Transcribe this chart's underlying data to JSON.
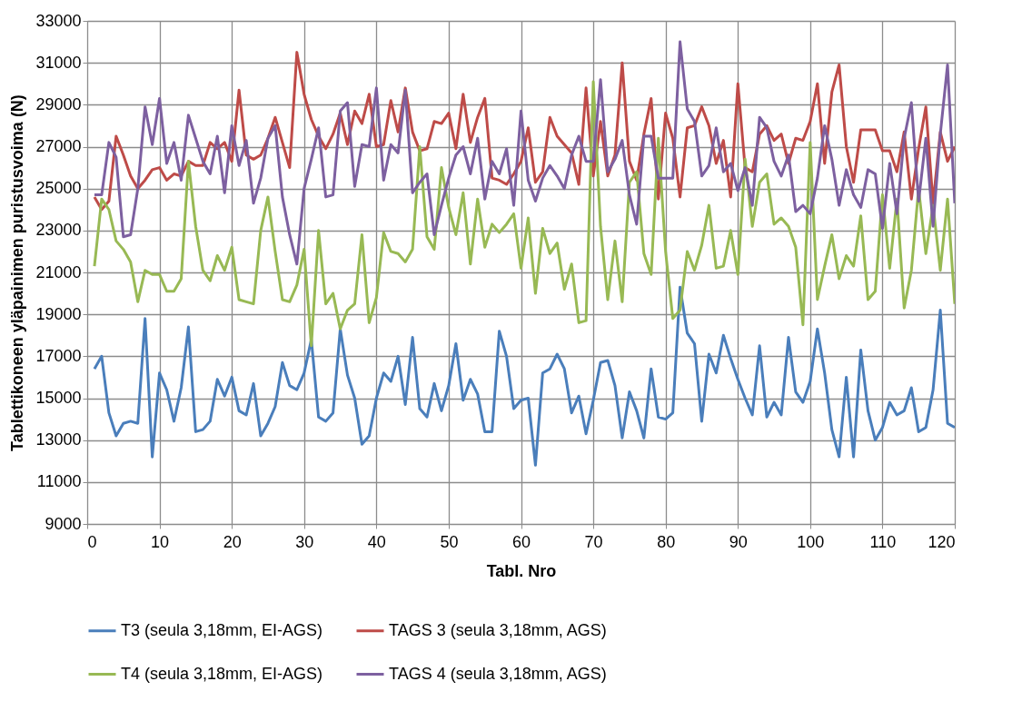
{
  "chart_data": {
    "type": "line",
    "xlabel": "Tabl. Nro",
    "ylabel": "Tablettikoneen yläpainimen puristusvoima (N)",
    "x": [
      1,
      2,
      3,
      4,
      5,
      6,
      7,
      8,
      9,
      10,
      11,
      12,
      13,
      14,
      15,
      16,
      17,
      18,
      19,
      20,
      21,
      22,
      23,
      24,
      25,
      26,
      27,
      28,
      29,
      30,
      31,
      32,
      33,
      34,
      35,
      36,
      37,
      38,
      39,
      40,
      41,
      42,
      43,
      44,
      45,
      46,
      47,
      48,
      49,
      50,
      51,
      52,
      53,
      54,
      55,
      56,
      57,
      58,
      59,
      60,
      61,
      62,
      63,
      64,
      65,
      66,
      67,
      68,
      69,
      70,
      71,
      72,
      73,
      74,
      75,
      76,
      77,
      78,
      79,
      80,
      81,
      82,
      83,
      84,
      85,
      86,
      87,
      88,
      89,
      90,
      91,
      92,
      93,
      94,
      95,
      96,
      97,
      98,
      99,
      100,
      101,
      102,
      103,
      104,
      105,
      106,
      107,
      108,
      109,
      110,
      111,
      112,
      113,
      114,
      115,
      116,
      117,
      118,
      119,
      120
    ],
    "series": [
      {
        "name": "T3 (seula 3,18mm, EI-AGS)",
        "color": "#4a7ebb",
        "values": [
          16400,
          17000,
          14300,
          13200,
          13800,
          13900,
          13800,
          18800,
          12200,
          16200,
          15400,
          13900,
          15500,
          18400,
          13400,
          13500,
          13900,
          15900,
          15100,
          16000,
          14400,
          14200,
          15700,
          13200,
          13800,
          14600,
          16700,
          15600,
          15400,
          16200,
          17800,
          14100,
          13900,
          14300,
          18300,
          16100,
          15000,
          12800,
          13200,
          15000,
          16200,
          15800,
          17000,
          14700,
          17900,
          14500,
          14100,
          15700,
          14400,
          15600,
          17600,
          14900,
          15900,
          15200,
          13400,
          13400,
          18200,
          17000,
          14500,
          14900,
          15000,
          11800,
          16200,
          16400,
          17100,
          16400,
          14300,
          15100,
          13300,
          14900,
          16700,
          16800,
          15600,
          13100,
          15300,
          14400,
          13100,
          16400,
          14100,
          14000,
          14300,
          20300,
          18100,
          17600,
          13900,
          17100,
          16200,
          18000,
          16900,
          15900,
          15000,
          14200,
          17500,
          14100,
          14800,
          14200,
          17900,
          15300,
          14800,
          15800,
          18300,
          16200,
          13500,
          12200,
          16000,
          12200,
          17300,
          14400,
          13000,
          13600,
          14800,
          14200,
          14400,
          15500,
          13400,
          13600,
          15400,
          19200,
          13800,
          13600
        ]
      },
      {
        "name": "TAGS 3 (seula 3,18mm, AGS)",
        "color": "#be4b48",
        "values": [
          24600,
          24000,
          24400,
          27500,
          26600,
          25600,
          25000,
          25400,
          25900,
          26000,
          25400,
          25700,
          25600,
          26300,
          26100,
          26100,
          27200,
          26900,
          27200,
          26300,
          29700,
          26600,
          26400,
          26600,
          27400,
          28400,
          27200,
          26000,
          31500,
          29500,
          28300,
          27500,
          26900,
          27600,
          28600,
          27100,
          28700,
          28100,
          29500,
          27000,
          27100,
          29200,
          27700,
          29800,
          27700,
          26800,
          26900,
          28200,
          28100,
          28600,
          26900,
          29500,
          27200,
          28400,
          29300,
          25500,
          25400,
          25200,
          25700,
          26300,
          27900,
          25300,
          25800,
          28400,
          27500,
          27100,
          26700,
          25200,
          29800,
          25600,
          28200,
          25600,
          26600,
          31000,
          26300,
          25400,
          27600,
          29300,
          24500,
          28600,
          27400,
          24600,
          27900,
          28000,
          28900,
          28000,
          26200,
          27300,
          24600,
          30000,
          26000,
          25800,
          27600,
          28000,
          27300,
          27600,
          26200,
          27400,
          27300,
          28200,
          30000,
          26200,
          29600,
          30900,
          27000,
          25300,
          27800,
          27800,
          27800,
          26800,
          26800,
          25800,
          27700,
          24500,
          26900,
          28900,
          24300,
          27700,
          26300,
          27000
        ]
      },
      {
        "name": "T4 (seula 3,18mm, EI-AGS)",
        "color": "#98b954",
        "values": [
          21300,
          24500,
          24000,
          22500,
          22100,
          21500,
          19600,
          21100,
          20900,
          20900,
          20100,
          20100,
          20700,
          26300,
          23200,
          21100,
          20600,
          21800,
          21100,
          22200,
          19700,
          19600,
          19500,
          23000,
          24600,
          22000,
          19700,
          19600,
          20400,
          22100,
          17500,
          23000,
          19500,
          20000,
          18300,
          19200,
          19500,
          22800,
          18600,
          19800,
          22900,
          22000,
          21900,
          21500,
          22100,
          27000,
          22700,
          22100,
          26000,
          24100,
          22800,
          24800,
          21400,
          24500,
          22200,
          23300,
          22900,
          23300,
          23800,
          21200,
          23600,
          20000,
          23100,
          21900,
          22400,
          20200,
          21400,
          18600,
          18700,
          30100,
          23200,
          19700,
          22500,
          19600,
          25300,
          25800,
          21900,
          20900,
          27400,
          22000,
          18800,
          19200,
          22000,
          21100,
          22300,
          24200,
          21200,
          21300,
          23000,
          20900,
          26400,
          23200,
          25300,
          25700,
          23300,
          23600,
          23200,
          22200,
          18500,
          27200,
          19700,
          21300,
          22800,
          20700,
          21800,
          21300,
          23700,
          19700,
          20100,
          24700,
          21200,
          24500,
          19300,
          21100,
          25000,
          21900,
          24200,
          21100,
          24500,
          19500
        ]
      },
      {
        "name": "TAGS 4 (seula 3,18mm, AGS)",
        "color": "#7d60a0",
        "values": [
          24700,
          24700,
          27200,
          26500,
          22700,
          22800,
          25000,
          28900,
          27100,
          29300,
          26200,
          27200,
          25400,
          28500,
          27400,
          26300,
          25700,
          27500,
          24800,
          28000,
          26100,
          27300,
          24300,
          25500,
          27400,
          28000,
          24600,
          22800,
          21400,
          25000,
          26400,
          27900,
          24600,
          24700,
          28700,
          29100,
          25100,
          27100,
          27000,
          29800,
          25400,
          27100,
          26700,
          29700,
          24800,
          25300,
          25700,
          22800,
          24200,
          25500,
          26600,
          27000,
          25700,
          27400,
          24500,
          26300,
          25700,
          26900,
          24200,
          28700,
          25400,
          24400,
          25500,
          26100,
          25600,
          25000,
          26600,
          27500,
          26300,
          26300,
          30200,
          25800,
          26400,
          27300,
          24700,
          23300,
          27500,
          27500,
          25500,
          25500,
          25500,
          32000,
          28800,
          28200,
          25600,
          26100,
          27900,
          25800,
          26200,
          24900,
          26000,
          24200,
          28400,
          27900,
          26300,
          25600,
          26600,
          23900,
          24200,
          23800,
          25500,
          28000,
          26400,
          24200,
          25900,
          24700,
          24100,
          25900,
          25700,
          23100,
          26200,
          23800,
          27400,
          29100,
          24400,
          27400,
          23200,
          27600,
          30900,
          24300
        ]
      }
    ],
    "xlim": [
      0,
      120
    ],
    "xticks": [
      0,
      10,
      20,
      30,
      40,
      50,
      60,
      70,
      80,
      90,
      100,
      110,
      120
    ],
    "ylim": [
      9000,
      33000
    ],
    "yticks": [
      9000,
      11000,
      13000,
      15000,
      17000,
      19000,
      21000,
      23000,
      25000,
      27000,
      29000,
      31000,
      33000
    ],
    "grid": true,
    "legend": "bottom",
    "line_style": "solid"
  }
}
